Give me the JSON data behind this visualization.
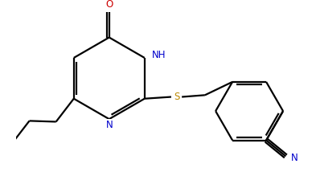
{
  "bg_color": "#ffffff",
  "bond_color": "#000000",
  "atom_colors": {
    "O": "#cc0000",
    "N": "#0000cc",
    "S": "#bb8800",
    "C": "#000000"
  },
  "font_size_atoms": 8.5,
  "fig_width": 3.93,
  "fig_height": 2.14,
  "dpi": 100
}
